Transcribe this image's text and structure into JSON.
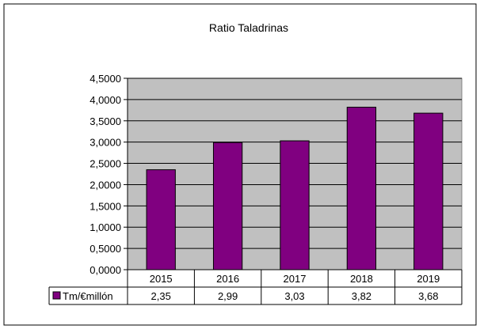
{
  "chart_data": {
    "type": "bar",
    "title": "Ratio Taladrinas",
    "categories": [
      "2015",
      "2016",
      "2017",
      "2018",
      "2019"
    ],
    "series": [
      {
        "name": "Tm/€millón",
        "values": [
          2.35,
          2.99,
          3.03,
          3.82,
          3.68
        ],
        "color": "#800080"
      }
    ],
    "data_labels": [
      "2,35",
      "2,99",
      "3,03",
      "3,82",
      "3,68"
    ],
    "ylim": [
      0,
      4.5
    ],
    "yticks": [
      "0,0000",
      "0,5000",
      "1,0000",
      "1,5000",
      "2,0000",
      "2,5000",
      "3,0000",
      "3,5000",
      "4,0000",
      "4,5000"
    ],
    "grid": true,
    "plot_background": "#c0c0c0",
    "legend_placement": "data-table-left"
  }
}
